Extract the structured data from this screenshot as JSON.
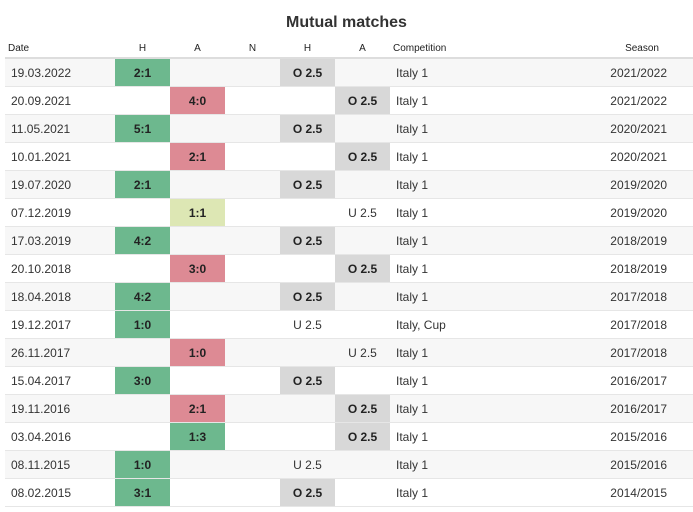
{
  "title": "Mutual matches",
  "headers": {
    "date": "Date",
    "h": "H",
    "a": "A",
    "n": "N",
    "h2": "H",
    "a2": "A",
    "competition": "Competition",
    "season": "Season"
  },
  "rows": [
    {
      "date": "19.03.2022",
      "h": "2:1",
      "a": "",
      "n": "",
      "ouh": "O 2.5",
      "oua": "",
      "comp": "Italy 1",
      "season": "2021/2022"
    },
    {
      "date": "20.09.2021",
      "h": "",
      "a": "4:0",
      "n": "",
      "ouh": "",
      "oua": "O 2.5",
      "comp": "Italy 1",
      "season": "2021/2022"
    },
    {
      "date": "11.05.2021",
      "h": "5:1",
      "a": "",
      "n": "",
      "ouh": "O 2.5",
      "oua": "",
      "comp": "Italy 1",
      "season": "2020/2021"
    },
    {
      "date": "10.01.2021",
      "h": "",
      "a": "2:1",
      "n": "",
      "ouh": "",
      "oua": "O 2.5",
      "comp": "Italy 1",
      "season": "2020/2021"
    },
    {
      "date": "19.07.2020",
      "h": "2:1",
      "a": "",
      "n": "",
      "ouh": "O 2.5",
      "oua": "",
      "comp": "Italy 1",
      "season": "2019/2020"
    },
    {
      "date": "07.12.2019",
      "h": "",
      "a": "1:1",
      "n": "",
      "ouh": "",
      "oua": "U 2.5",
      "comp": "Italy 1",
      "season": "2019/2020"
    },
    {
      "date": "17.03.2019",
      "h": "4:2",
      "a": "",
      "n": "",
      "ouh": "O 2.5",
      "oua": "",
      "comp": "Italy 1",
      "season": "2018/2019"
    },
    {
      "date": "20.10.2018",
      "h": "",
      "a": "3:0",
      "n": "",
      "ouh": "",
      "oua": "O 2.5",
      "comp": "Italy 1",
      "season": "2018/2019"
    },
    {
      "date": "18.04.2018",
      "h": "4:2",
      "a": "",
      "n": "",
      "ouh": "O 2.5",
      "oua": "",
      "comp": "Italy 1",
      "season": "2017/2018"
    },
    {
      "date": "19.12.2017",
      "h": "1:0",
      "a": "",
      "n": "",
      "ouh": "U 2.5",
      "oua": "",
      "comp": "Italy, Cup",
      "season": "2017/2018"
    },
    {
      "date": "26.11.2017",
      "h": "",
      "a": "1:0",
      "n": "",
      "ouh": "",
      "oua": "U 2.5",
      "comp": "Italy 1",
      "season": "2017/2018"
    },
    {
      "date": "15.04.2017",
      "h": "3:0",
      "a": "",
      "n": "",
      "ouh": "O 2.5",
      "oua": "",
      "comp": "Italy 1",
      "season": "2016/2017"
    },
    {
      "date": "19.11.2016",
      "h": "",
      "a": "2:1",
      "n": "",
      "ouh": "",
      "oua": "O 2.5",
      "comp": "Italy 1",
      "season": "2016/2017"
    },
    {
      "date": "03.04.2016",
      "h": "",
      "a": "1:3",
      "n": "",
      "ouh": "",
      "oua": "O 2.5",
      "comp": "Italy 1",
      "season": "2015/2016"
    },
    {
      "date": "08.11.2015",
      "h": "1:0",
      "a": "",
      "n": "",
      "ouh": "U 2.5",
      "oua": "",
      "comp": "Italy 1",
      "season": "2015/2016"
    },
    {
      "date": "08.02.2015",
      "h": "3:1",
      "a": "",
      "n": "",
      "ouh": "O 2.5",
      "oua": "",
      "comp": "Italy 1",
      "season": "2014/2015"
    }
  ],
  "colors": {
    "win": "#6db88e",
    "draw": "#dde7b4",
    "loss": "#dd8a94",
    "over": "#d8d8d8"
  }
}
